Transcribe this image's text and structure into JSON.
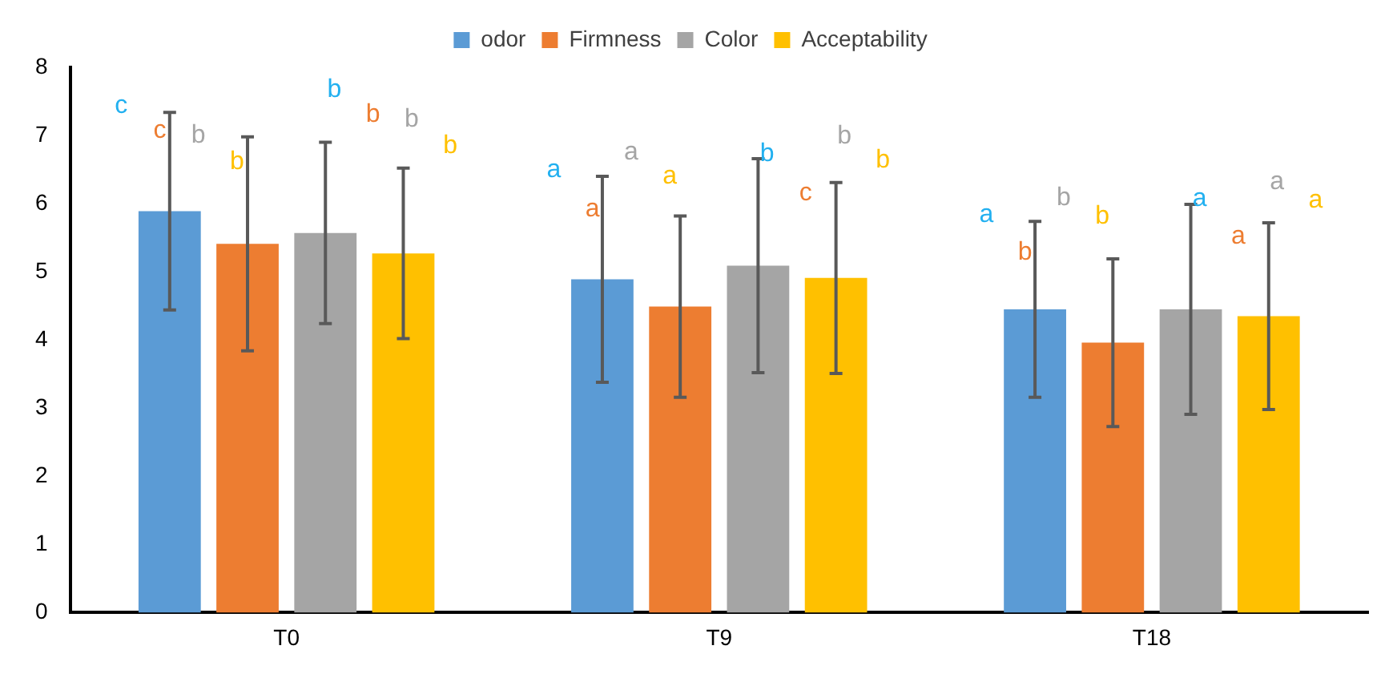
{
  "chart_data": {
    "type": "bar",
    "categories": [
      "T0",
      "T9",
      "T18"
    ],
    "series": [
      {
        "name": "odor",
        "color": "#5b9bd5",
        "values": [
          5.89,
          4.89,
          4.45
        ],
        "errors": [
          1.45,
          1.51,
          1.29
        ]
      },
      {
        "name": "Firmness",
        "color": "#ed7d31",
        "values": [
          5.41,
          4.49,
          3.96
        ],
        "errors": [
          1.57,
          1.33,
          1.23
        ]
      },
      {
        "name": "Color",
        "color": "#a5a5a5",
        "values": [
          5.57,
          5.09,
          4.45
        ],
        "errors": [
          1.33,
          1.57,
          1.54
        ]
      },
      {
        "name": "Acceptability",
        "color": "#ffc000",
        "values": [
          5.27,
          4.91,
          4.35
        ],
        "errors": [
          1.25,
          1.4,
          1.37
        ]
      }
    ],
    "ylim": [
      0,
      8
    ],
    "yticks": [
      0,
      1,
      2,
      3,
      4,
      5,
      6,
      7,
      8
    ],
    "grid": false,
    "legend": "top",
    "annotations": [
      "c",
      "c",
      "b",
      "b",
      "b",
      "b",
      "b",
      "b",
      "a",
      "a",
      "a",
      "a",
      "b",
      "c",
      "b",
      "b",
      "a",
      "b",
      "b",
      "b",
      "a",
      "a",
      "a",
      "a"
    ]
  }
}
